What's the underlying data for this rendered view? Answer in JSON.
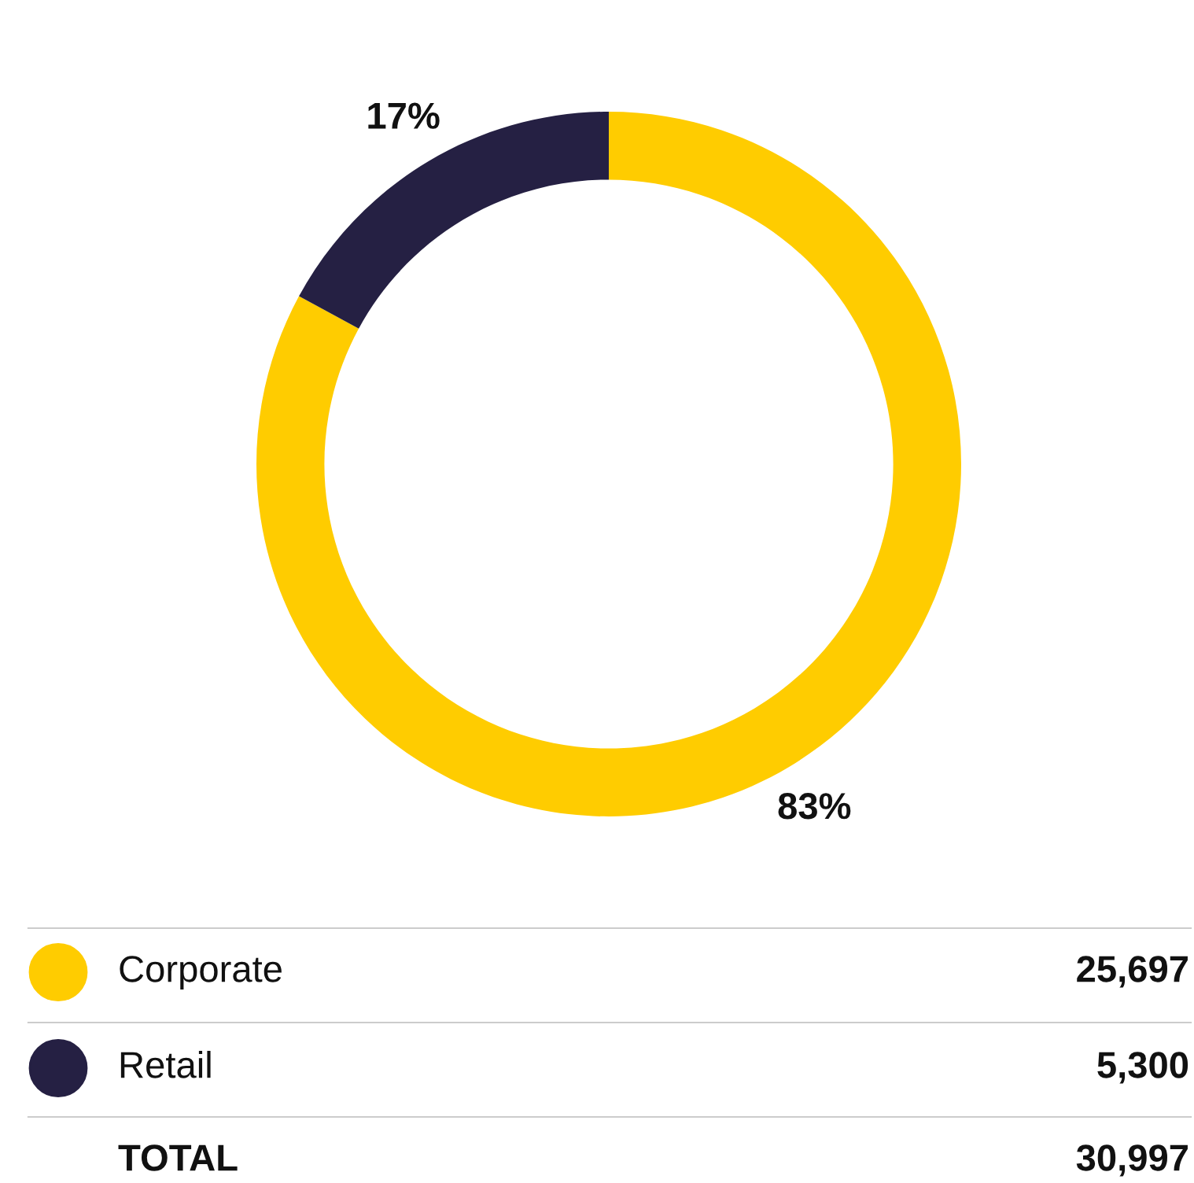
{
  "chart_data": {
    "type": "donut",
    "categories": [
      "Corporate",
      "Retail"
    ],
    "values": [
      25697,
      5300
    ],
    "colors": [
      "#ffcc00",
      "#252043"
    ],
    "value_labels": [
      "25,697",
      "5,300"
    ],
    "totals": [
      "30,997"
    ],
    "annotations": [
      {
        "text": "83%",
        "x": "Corporate"
      },
      {
        "text": "17%",
        "x": "Retail"
      },
      "TOTAL"
    ],
    "legend": "bottom"
  }
}
